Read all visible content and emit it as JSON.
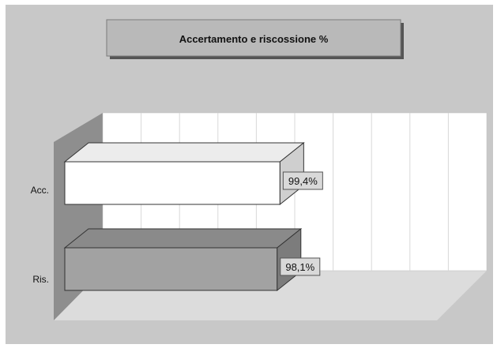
{
  "chart_data": {
    "type": "bar",
    "orientation": "horizontal",
    "three_d": true,
    "title": "Accertamento e riscossione %",
    "categories": [
      "Acc.",
      "Ris."
    ],
    "values": [
      99.4,
      98.1
    ],
    "value_labels": [
      "99,4%",
      "98,1%"
    ],
    "xlim": [
      0,
      200
    ],
    "grid": true,
    "legend": "none",
    "colors": {
      "background": "#c8c8c8",
      "title_box": "#b9b9b9",
      "plot_back": "#ffffff",
      "side_wall": "#8e8e8e",
      "floor": "#dcdcdc",
      "bar_acc": "#ffffff",
      "bar_ris": "#a2a2a2",
      "label_box": "#d9d9d9"
    }
  }
}
